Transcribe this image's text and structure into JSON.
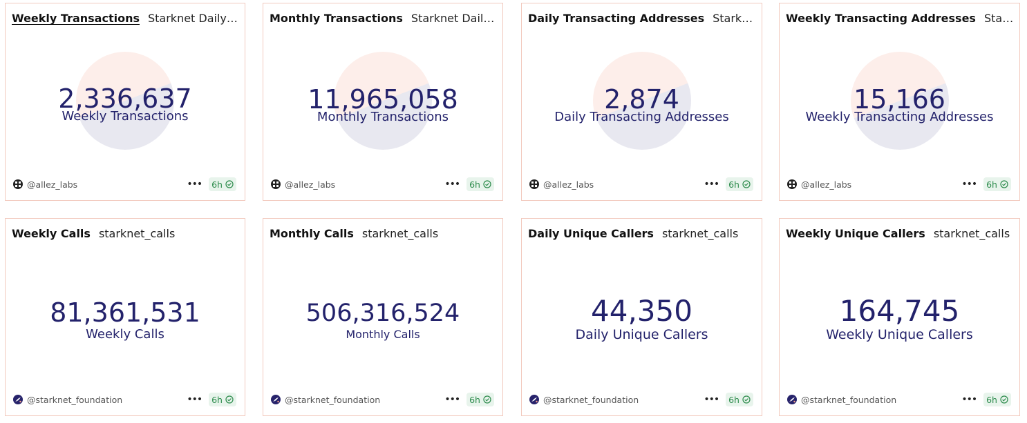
{
  "cards": [
    {
      "title": "Weekly Transactions",
      "source": "Starknet Daily Active Users",
      "value": "2,336,637",
      "label": "Weekly Transactions",
      "owner": "@allez_labs",
      "freshness": "6h"
    },
    {
      "title": "Monthly Transactions",
      "source": "Starknet Daily Active Users",
      "value": "11,965,058",
      "label": "Monthly Transactions",
      "owner": "@allez_labs",
      "freshness": "6h"
    },
    {
      "title": "Daily Transacting Addresses",
      "source": "Starknet Daily Active Users",
      "value": "2,874",
      "label": "Daily Transacting Addresses",
      "owner": "@allez_labs",
      "freshness": "6h"
    },
    {
      "title": "Weekly Transacting Addresses",
      "source": "Starknet Daily Active Users",
      "value": "15,166",
      "label": "Weekly Transacting Addresses",
      "owner": "@allez_labs",
      "freshness": "6h"
    },
    {
      "title": "Weekly Calls",
      "source": "starknet_calls",
      "value": "81,361,531",
      "label": "Weekly Calls",
      "owner": "@starknet_foundation",
      "freshness": "6h"
    },
    {
      "title": "Monthly Calls",
      "source": "starknet_calls",
      "value": "506,316,524",
      "label": "Monthly Calls",
      "owner": "@starknet_foundation",
      "freshness": "6h"
    },
    {
      "title": "Daily Unique Callers",
      "source": "starknet_calls",
      "value": "44,350",
      "label": "Daily Unique Callers",
      "owner": "@starknet_foundation",
      "freshness": "6h"
    },
    {
      "title": "Weekly Unique Callers",
      "source": "starknet_calls",
      "value": "164,745",
      "label": "Weekly Unique Callers",
      "owner": "@starknet_foundation",
      "freshness": "6h"
    }
  ],
  "colors": {
    "card_border": "#f2c9bd",
    "counter_text": "#23226b",
    "badge_bg": "#e8f4ec",
    "badge_text": "#2b8a4a"
  }
}
